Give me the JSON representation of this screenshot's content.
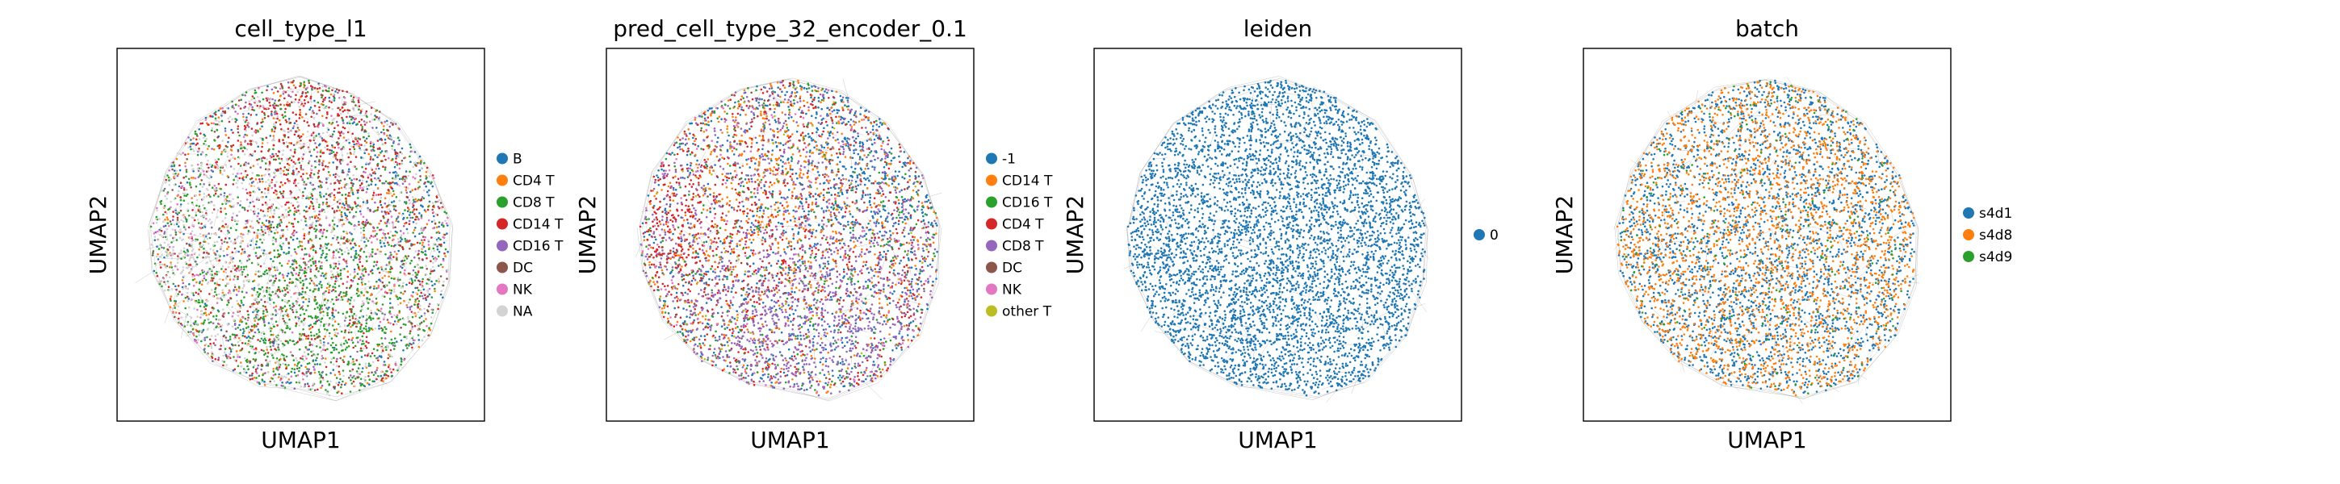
{
  "chart_data": [
    {
      "type": "scatter",
      "title": "cell_type_l1",
      "xlabel": "UMAP1",
      "ylabel": "UMAP2",
      "legend_position": "right",
      "grid": false,
      "series": [
        {
          "name": "B",
          "color": "#1f77b4",
          "share": 0.1
        },
        {
          "name": "CD4 T",
          "color": "#ff7f0e",
          "share": 0.12
        },
        {
          "name": "CD8 T",
          "color": "#2ca02c",
          "share": 0.22
        },
        {
          "name": "CD14 T",
          "color": "#d62728",
          "share": 0.14
        },
        {
          "name": "CD16 T",
          "color": "#9467bd",
          "share": 0.08
        },
        {
          "name": "DC",
          "color": "#8c564b",
          "share": 0.06
        },
        {
          "name": "NK",
          "color": "#e377c2",
          "share": 0.08
        },
        {
          "name": "NA",
          "color": "#d3d3d3",
          "share": 0.2
        }
      ]
    },
    {
      "type": "scatter",
      "title": "pred_cell_type_32_encoder_0.1",
      "xlabel": "UMAP1",
      "ylabel": "UMAP2",
      "legend_position": "right",
      "grid": false,
      "series": [
        {
          "name": "-1",
          "color": "#1f77b4",
          "share": 0.22
        },
        {
          "name": "CD14 T",
          "color": "#ff7f0e",
          "share": 0.16
        },
        {
          "name": "CD16 T",
          "color": "#2ca02c",
          "share": 0.1
        },
        {
          "name": "CD4 T",
          "color": "#d62728",
          "share": 0.18
        },
        {
          "name": "CD8 T",
          "color": "#9467bd",
          "share": 0.24
        },
        {
          "name": "DC",
          "color": "#8c564b",
          "share": 0.03
        },
        {
          "name": "NK",
          "color": "#e377c2",
          "share": 0.05
        },
        {
          "name": "other T",
          "color": "#bcbd22",
          "share": 0.02
        }
      ]
    },
    {
      "type": "scatter",
      "title": "leiden",
      "xlabel": "UMAP1",
      "ylabel": "UMAP2",
      "legend_position": "right",
      "grid": false,
      "series": [
        {
          "name": "0",
          "color": "#1f77b4",
          "share": 1.0
        }
      ]
    },
    {
      "type": "scatter",
      "title": "batch",
      "xlabel": "UMAP1",
      "ylabel": "UMAP2",
      "legend_position": "right",
      "grid": false,
      "series": [
        {
          "name": "s4d1",
          "color": "#1f77b4",
          "share": 0.5
        },
        {
          "name": "s4d8",
          "color": "#ff7f0e",
          "share": 0.45
        },
        {
          "name": "s4d9",
          "color": "#2ca02c",
          "share": 0.05
        }
      ]
    }
  ],
  "colors": {
    "edge": "#888888",
    "frame": "#000000"
  }
}
